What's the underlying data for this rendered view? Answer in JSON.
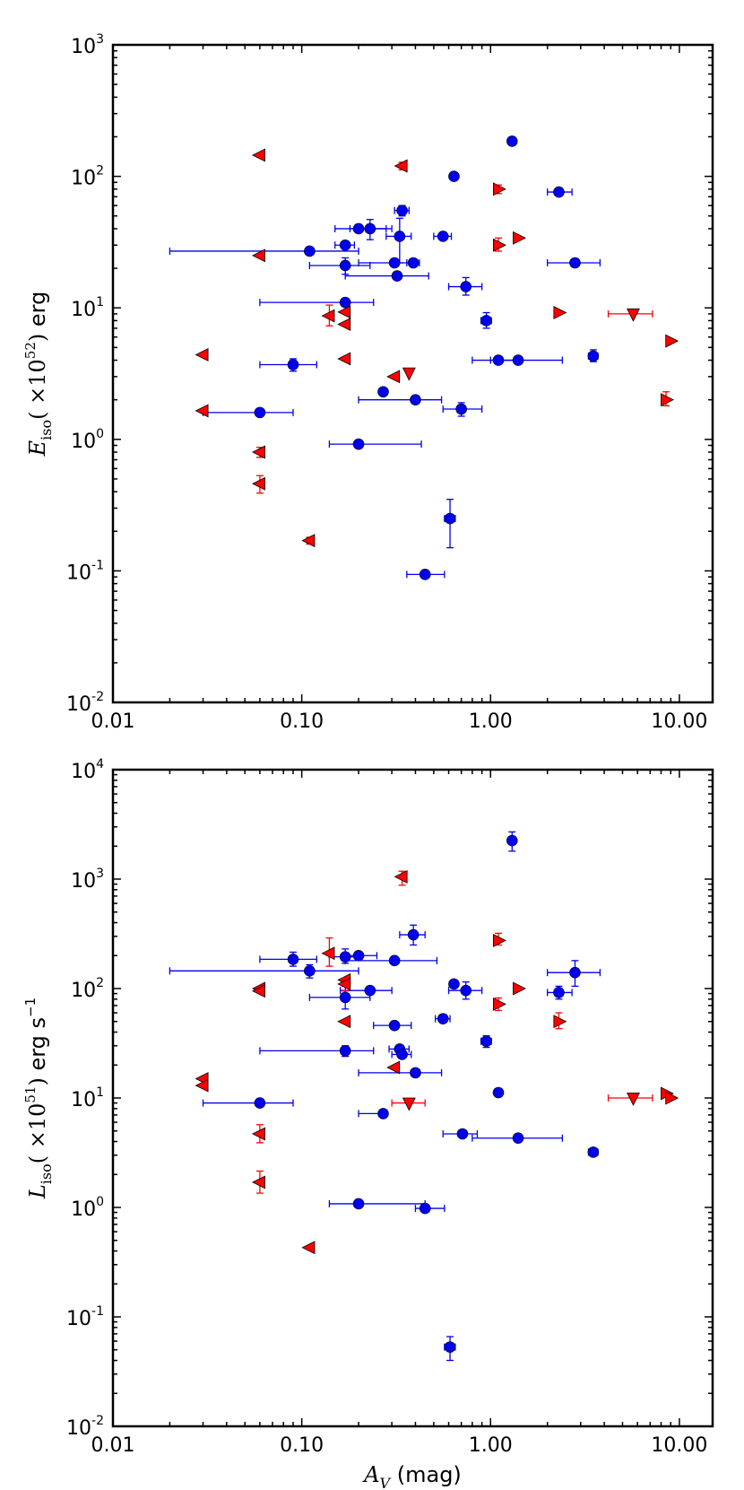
{
  "chart_data": [
    {
      "type": "scatter",
      "name": "top-panel",
      "xscale": "log",
      "yscale": "log",
      "xlim": [
        0.01,
        15
      ],
      "ylim": [
        0.01,
        1000
      ],
      "xticks": [
        0.01,
        0.1,
        1,
        10
      ],
      "xtick_labels": [
        "0.01",
        "0.10",
        "1.00",
        "10.00"
      ],
      "yticks": [
        {
          "base": "10",
          "exp": "-2",
          "value": 0.01
        },
        {
          "base": "10",
          "exp": "-1",
          "value": 0.1
        },
        {
          "base": "10",
          "exp": "0",
          "value": 1
        },
        {
          "base": "10",
          "exp": "1",
          "value": 10
        },
        {
          "base": "10",
          "exp": "2",
          "value": 100
        },
        {
          "base": "10",
          "exp": "3",
          "value": 1000
        }
      ],
      "ylabel": {
        "symbol": "E",
        "sub": "iso",
        "open": "( ×10",
        "exp": "52",
        "close": ")",
        "unit": "erg"
      },
      "series": [
        {
          "name": "detections",
          "marker": "circle",
          "color": "#0000ee",
          "points": [
            {
              "x": 1.3,
              "y": 185
            },
            {
              "x": 0.64,
              "y": 100
            },
            {
              "x": 2.3,
              "y": 76,
              "xerr": [
                2.0,
                2.7
              ]
            },
            {
              "x": 0.34,
              "y": 55,
              "xerr": [
                0.31,
                0.37
              ],
              "yerr": [
                50,
                60
              ]
            },
            {
              "x": 0.2,
              "y": 40,
              "xerr": [
                0.15,
                0.28
              ]
            },
            {
              "x": 0.23,
              "y": 40,
              "xerr": [
                0.18,
                0.3
              ],
              "yerr": [
                33,
                47
              ]
            },
            {
              "x": 0.33,
              "y": 35,
              "xerr": [
                0.28,
                0.38
              ],
              "yerr": [
                22,
                48
              ]
            },
            {
              "x": 0.56,
              "y": 35,
              "xerr": [
                0.5,
                0.62
              ]
            },
            {
              "x": 0.17,
              "y": 30,
              "xerr": [
                0.15,
                0.19
              ]
            },
            {
              "x": 0.11,
              "y": 27,
              "xerr": [
                0.02,
                0.2
              ]
            },
            {
              "x": 0.31,
              "y": 22,
              "xerr": [
                0.2,
                0.4
              ]
            },
            {
              "x": 0.39,
              "y": 22,
              "xerr": [
                0.36,
                0.42
              ]
            },
            {
              "x": 2.8,
              "y": 22,
              "xerr": [
                2.0,
                3.8
              ]
            },
            {
              "x": 0.17,
              "y": 21,
              "xerr": [
                0.11,
                0.23
              ],
              "yerr": [
                18,
                24
              ]
            },
            {
              "x": 0.32,
              "y": 17.5,
              "xerr": [
                0.17,
                0.47
              ]
            },
            {
              "x": 0.74,
              "y": 14.5,
              "xerr": [
                0.6,
                0.9
              ],
              "yerr": [
                12.5,
                17
              ]
            },
            {
              "x": 0.17,
              "y": 11,
              "xerr": [
                0.06,
                0.24
              ]
            },
            {
              "x": 0.95,
              "y": 8,
              "xerr": [
                0.89,
                1.01
              ],
              "yerr": [
                7,
                9.2
              ]
            },
            {
              "x": 1.1,
              "y": 4,
              "xerr": [
                0.8,
                1.4
              ]
            },
            {
              "x": 1.4,
              "y": 4,
              "xerr": [
                1.0,
                2.4
              ]
            },
            {
              "x": 3.5,
              "y": 4.3,
              "xerr": [
                3.3,
                3.7
              ],
              "yerr": [
                3.9,
                4.8
              ]
            },
            {
              "x": 0.09,
              "y": 3.7,
              "xerr": [
                0.06,
                0.12
              ],
              "yerr": [
                3.3,
                4.1
              ]
            },
            {
              "x": 0.27,
              "y": 2.3,
              "xerr": [
                0.26,
                0.28
              ]
            },
            {
              "x": 0.4,
              "y": 2.0,
              "xerr": [
                0.2,
                0.55
              ]
            },
            {
              "x": 0.7,
              "y": 1.7,
              "xerr": [
                0.56,
                0.9
              ],
              "yerr": [
                1.5,
                1.9
              ]
            },
            {
              "x": 0.06,
              "y": 1.6,
              "xerr": [
                0.03,
                0.09
              ]
            },
            {
              "x": 0.2,
              "y": 0.92,
              "xerr": [
                0.14,
                0.43
              ]
            },
            {
              "x": 0.61,
              "y": 0.25,
              "xerr": [
                0.57,
                0.65
              ],
              "yerr": [
                0.15,
                0.35
              ]
            },
            {
              "x": 0.45,
              "y": 0.094,
              "xerr": [
                0.36,
                0.57
              ]
            }
          ]
        },
        {
          "name": "limits",
          "marker": "triangle",
          "color": "#ff0000",
          "points": [
            {
              "x": 0.06,
              "y": 145,
              "dir": "left"
            },
            {
              "x": 0.34,
              "y": 120,
              "dir": "left",
              "yerr": [
                112,
                128
              ]
            },
            {
              "x": 1.1,
              "y": 80,
              "dir": "right",
              "yerr": [
                74,
                86
              ]
            },
            {
              "x": 1.4,
              "y": 34,
              "dir": "right"
            },
            {
              "x": 1.1,
              "y": 30,
              "dir": "right",
              "yerr": [
                27,
                34
              ]
            },
            {
              "x": 0.06,
              "y": 25,
              "dir": "left"
            },
            {
              "x": 0.14,
              "y": 8.7,
              "dir": "left",
              "yerr": [
                7.3,
                10.5
              ]
            },
            {
              "x": 0.17,
              "y": 9.3,
              "dir": "left"
            },
            {
              "x": 0.17,
              "y": 7.5,
              "dir": "left"
            },
            {
              "x": 2.3,
              "y": 9.2,
              "dir": "right"
            },
            {
              "x": 5.7,
              "y": 9,
              "dir": "down",
              "xerr": [
                4.2,
                7.2
              ]
            },
            {
              "x": 9.0,
              "y": 5.6,
              "dir": "right"
            },
            {
              "x": 0.03,
              "y": 4.4,
              "dir": "left"
            },
            {
              "x": 0.17,
              "y": 4.1,
              "dir": "left"
            },
            {
              "x": 0.37,
              "y": 3.2,
              "dir": "down"
            },
            {
              "x": 0.31,
              "y": 3.0,
              "dir": "left"
            },
            {
              "x": 8.5,
              "y": 2.0,
              "dir": "right",
              "yerr": [
                1.8,
                2.3
              ]
            },
            {
              "x": 0.03,
              "y": 1.65,
              "dir": "left"
            },
            {
              "x": 0.06,
              "y": 0.8,
              "dir": "left",
              "yerr": [
                0.73,
                0.87
              ]
            },
            {
              "x": 0.06,
              "y": 0.46,
              "dir": "left",
              "yerr": [
                0.39,
                0.53
              ]
            },
            {
              "x": 0.11,
              "y": 0.17,
              "dir": "left",
              "yerr": [
                0.16,
                0.18
              ]
            }
          ]
        }
      ]
    },
    {
      "type": "scatter",
      "name": "bottom-panel",
      "xscale": "log",
      "yscale": "log",
      "xlim": [
        0.01,
        15
      ],
      "ylim": [
        0.01,
        10000
      ],
      "xticks": [
        0.01,
        0.1,
        1,
        10
      ],
      "xtick_labels": [
        "0.01",
        "0.10",
        "1.00",
        "10.00"
      ],
      "yticks": [
        {
          "base": "10",
          "exp": "-2",
          "value": 0.01
        },
        {
          "base": "10",
          "exp": "-1",
          "value": 0.1
        },
        {
          "base": "10",
          "exp": "0",
          "value": 1
        },
        {
          "base": "10",
          "exp": "1",
          "value": 10
        },
        {
          "base": "10",
          "exp": "2",
          "value": 100
        },
        {
          "base": "10",
          "exp": "3",
          "value": 1000
        },
        {
          "base": "10",
          "exp": "4",
          "value": 10000
        }
      ],
      "ylabel": {
        "symbol": "L",
        "sub": "iso",
        "open": "( ×10",
        "exp": "51",
        "close": ")",
        "unit": "erg s",
        "unit_exp": "−1"
      },
      "xlabel": {
        "symbol": "A",
        "sub": "V",
        "unit": "(mag)"
      },
      "series": [
        {
          "name": "detections",
          "marker": "circle",
          "color": "#0000ee",
          "points": [
            {
              "x": 1.3,
              "y": 2250,
              "yerr": [
                1800,
                2700
              ]
            },
            {
              "x": 0.39,
              "y": 310,
              "xerr": [
                0.33,
                0.45
              ],
              "yerr": [
                250,
                380
              ]
            },
            {
              "x": 0.09,
              "y": 185,
              "xerr": [
                0.06,
                0.12
              ],
              "yerr": [
                160,
                215
              ]
            },
            {
              "x": 0.17,
              "y": 195,
              "xerr": [
                0.14,
                0.2
              ],
              "yerr": [
                170,
                230
              ]
            },
            {
              "x": 0.2,
              "y": 200,
              "xerr": [
                0.17,
                0.25
              ]
            },
            {
              "x": 0.31,
              "y": 180,
              "xerr": [
                0.17,
                0.52
              ]
            },
            {
              "x": 0.11,
              "y": 145,
              "xerr": [
                0.02,
                0.2
              ],
              "yerr": [
                125,
                165
              ]
            },
            {
              "x": 2.8,
              "y": 140,
              "xerr": [
                2.0,
                3.8
              ],
              "yerr": [
                105,
                180
              ]
            },
            {
              "x": 0.64,
              "y": 110
            },
            {
              "x": 0.23,
              "y": 96,
              "xerr": [
                0.16,
                0.3
              ]
            },
            {
              "x": 0.74,
              "y": 96,
              "xerr": [
                0.6,
                0.9
              ],
              "yerr": [
                80,
                115
              ]
            },
            {
              "x": 2.3,
              "y": 92,
              "xerr": [
                2.0,
                2.7
              ],
              "yerr": [
                80,
                105
              ]
            },
            {
              "x": 0.17,
              "y": 83,
              "xerr": [
                0.11,
                0.23
              ],
              "yerr": [
                65,
                105
              ]
            },
            {
              "x": 0.56,
              "y": 53,
              "xerr": [
                0.51,
                0.61
              ]
            },
            {
              "x": 0.31,
              "y": 46,
              "xerr": [
                0.24,
                0.38
              ]
            },
            {
              "x": 0.95,
              "y": 33,
              "xerr": [
                0.89,
                1.01
              ],
              "yerr": [
                29,
                37
              ]
            },
            {
              "x": 0.33,
              "y": 28,
              "xerr": [
                0.29,
                0.37
              ]
            },
            {
              "x": 0.17,
              "y": 27,
              "xerr": [
                0.06,
                0.24
              ],
              "yerr": [
                24,
                30
              ]
            },
            {
              "x": 0.34,
              "y": 25,
              "xerr": [
                0.3,
                0.38
              ]
            },
            {
              "x": 0.4,
              "y": 17,
              "xerr": [
                0.2,
                0.55
              ]
            },
            {
              "x": 1.1,
              "y": 11.2
            },
            {
              "x": 0.06,
              "y": 9,
              "xerr": [
                0.03,
                0.09
              ]
            },
            {
              "x": 0.27,
              "y": 7.2,
              "xerr": [
                0.2,
                0.28
              ]
            },
            {
              "x": 0.71,
              "y": 4.7,
              "xerr": [
                0.56,
                0.85
              ]
            },
            {
              "x": 1.4,
              "y": 4.3,
              "xerr": [
                0.8,
                2.4
              ]
            },
            {
              "x": 3.5,
              "y": 3.2,
              "xerr": [
                3.3,
                3.7
              ]
            },
            {
              "x": 0.2,
              "y": 1.08,
              "xerr": [
                0.14,
                0.45
              ]
            },
            {
              "x": 0.45,
              "y": 0.98,
              "xerr": [
                0.4,
                0.57
              ]
            },
            {
              "x": 0.61,
              "y": 0.053,
              "xerr": [
                0.57,
                0.65
              ],
              "yerr": [
                0.04,
                0.066
              ]
            }
          ]
        },
        {
          "name": "limits",
          "marker": "triangle",
          "color": "#ff0000",
          "points": [
            {
              "x": 0.34,
              "y": 1050,
              "dir": "left",
              "yerr": [
                880,
                1180
              ]
            },
            {
              "x": 1.1,
              "y": 275,
              "dir": "right",
              "yerr": [
                250,
                320
              ]
            },
            {
              "x": 0.14,
              "y": 210,
              "dir": "left",
              "yerr": [
                160,
                290
              ]
            },
            {
              "x": 0.17,
              "y": 120,
              "dir": "left"
            },
            {
              "x": 0.17,
              "y": 110,
              "dir": "left",
              "yerr": [
                95,
                125
              ]
            },
            {
              "x": 0.06,
              "y": 100,
              "dir": "left"
            },
            {
              "x": 0.06,
              "y": 95,
              "dir": "left"
            },
            {
              "x": 1.4,
              "y": 100,
              "dir": "right"
            },
            {
              "x": 1.1,
              "y": 72,
              "dir": "right",
              "yerr": [
                63,
                82
              ]
            },
            {
              "x": 0.17,
              "y": 50,
              "dir": "left"
            },
            {
              "x": 2.3,
              "y": 50,
              "dir": "right",
              "yerr": [
                43,
                60
              ]
            },
            {
              "x": 0.31,
              "y": 19,
              "dir": "left"
            },
            {
              "x": 0.03,
              "y": 15,
              "dir": "left"
            },
            {
              "x": 0.03,
              "y": 13,
              "dir": "left"
            },
            {
              "x": 5.7,
              "y": 10,
              "dir": "down",
              "xerr": [
                4.2,
                7.2
              ]
            },
            {
              "x": 8.5,
              "y": 11,
              "dir": "right"
            },
            {
              "x": 9.0,
              "y": 10,
              "dir": "right"
            },
            {
              "x": 0.37,
              "y": 9,
              "dir": "down",
              "xerr": [
                0.3,
                0.45
              ]
            },
            {
              "x": 0.06,
              "y": 4.7,
              "dir": "left",
              "yerr": [
                3.9,
                5.7
              ]
            },
            {
              "x": 0.06,
              "y": 1.7,
              "dir": "left",
              "yerr": [
                1.35,
                2.15
              ]
            },
            {
              "x": 0.11,
              "y": 0.43,
              "dir": "left"
            }
          ]
        }
      ]
    }
  ]
}
